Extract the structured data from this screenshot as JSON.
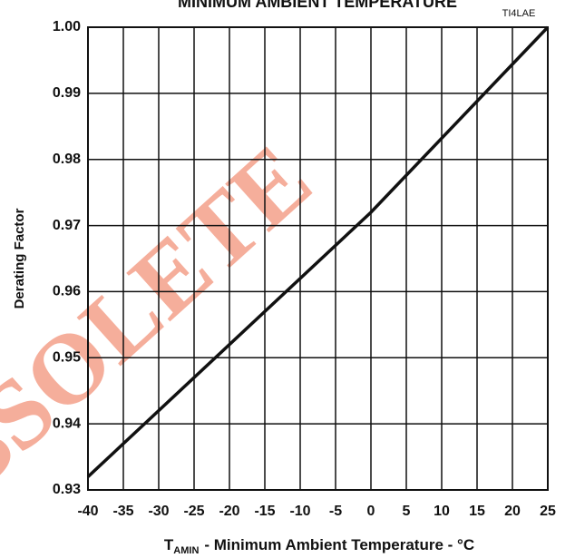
{
  "chart_data": {
    "type": "line",
    "title": "MINIMUM AMBIENT TEMPERATURE",
    "annotation": "TI4LAE",
    "watermark": "OBSOLETE",
    "y_label": "Derating Factor",
    "x_label": {
      "symbol": "T",
      "subscript": "AMIN",
      "text": "- Minimum Ambient Temperature - °C"
    },
    "x": [
      -40,
      -20,
      0,
      25
    ],
    "series": [
      {
        "color": "#111111",
        "values": [
          0.932,
          0.952,
          0.972,
          1.0
        ]
      }
    ],
    "xlim": [
      -40,
      25
    ],
    "xticks": [
      -40,
      -35,
      -30,
      -25,
      -20,
      -15,
      -10,
      -5,
      0,
      5,
      10,
      15,
      20,
      25
    ],
    "ylim": [
      0.93,
      1.0
    ],
    "yticks": [
      0.93,
      0.94,
      0.95,
      0.96,
      0.97,
      0.98,
      0.99,
      {
        "value": 1.0,
        "label": "1.00"
      }
    ],
    "grid": true
  }
}
